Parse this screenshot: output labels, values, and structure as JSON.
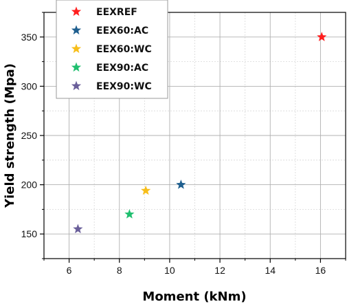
{
  "chart_data": {
    "type": "scatter",
    "title": "",
    "xlabel": "Moment (kNm)",
    "ylabel": "Yield strength (Mpa)",
    "xlim": [
      5,
      17
    ],
    "ylim": [
      125,
      375
    ],
    "xticks": [
      "6",
      "8",
      "10",
      "12",
      "14",
      "16"
    ],
    "yticks": [
      "150",
      "200",
      "250",
      "300",
      "350"
    ],
    "grid": true,
    "legend_position": "top-left",
    "marker": "star",
    "series": [
      {
        "name": "EEXREF",
        "color": "#ff1f1f",
        "x": [
          16.05
        ],
        "y": [
          350
        ]
      },
      {
        "name": "EEX60:AC",
        "color": "#1f5f8f",
        "x": [
          10.45
        ],
        "y": [
          200
        ]
      },
      {
        "name": "EEX60:WC",
        "color": "#f7be1a",
        "x": [
          9.05
        ],
        "y": [
          194
        ]
      },
      {
        "name": "EEX90:AC",
        "color": "#1fbf6f",
        "x": [
          8.4
        ],
        "y": [
          170
        ]
      },
      {
        "name": "EEX90:WC",
        "color": "#6a5f9a",
        "x": [
          6.35
        ],
        "y": [
          155
        ]
      }
    ]
  }
}
